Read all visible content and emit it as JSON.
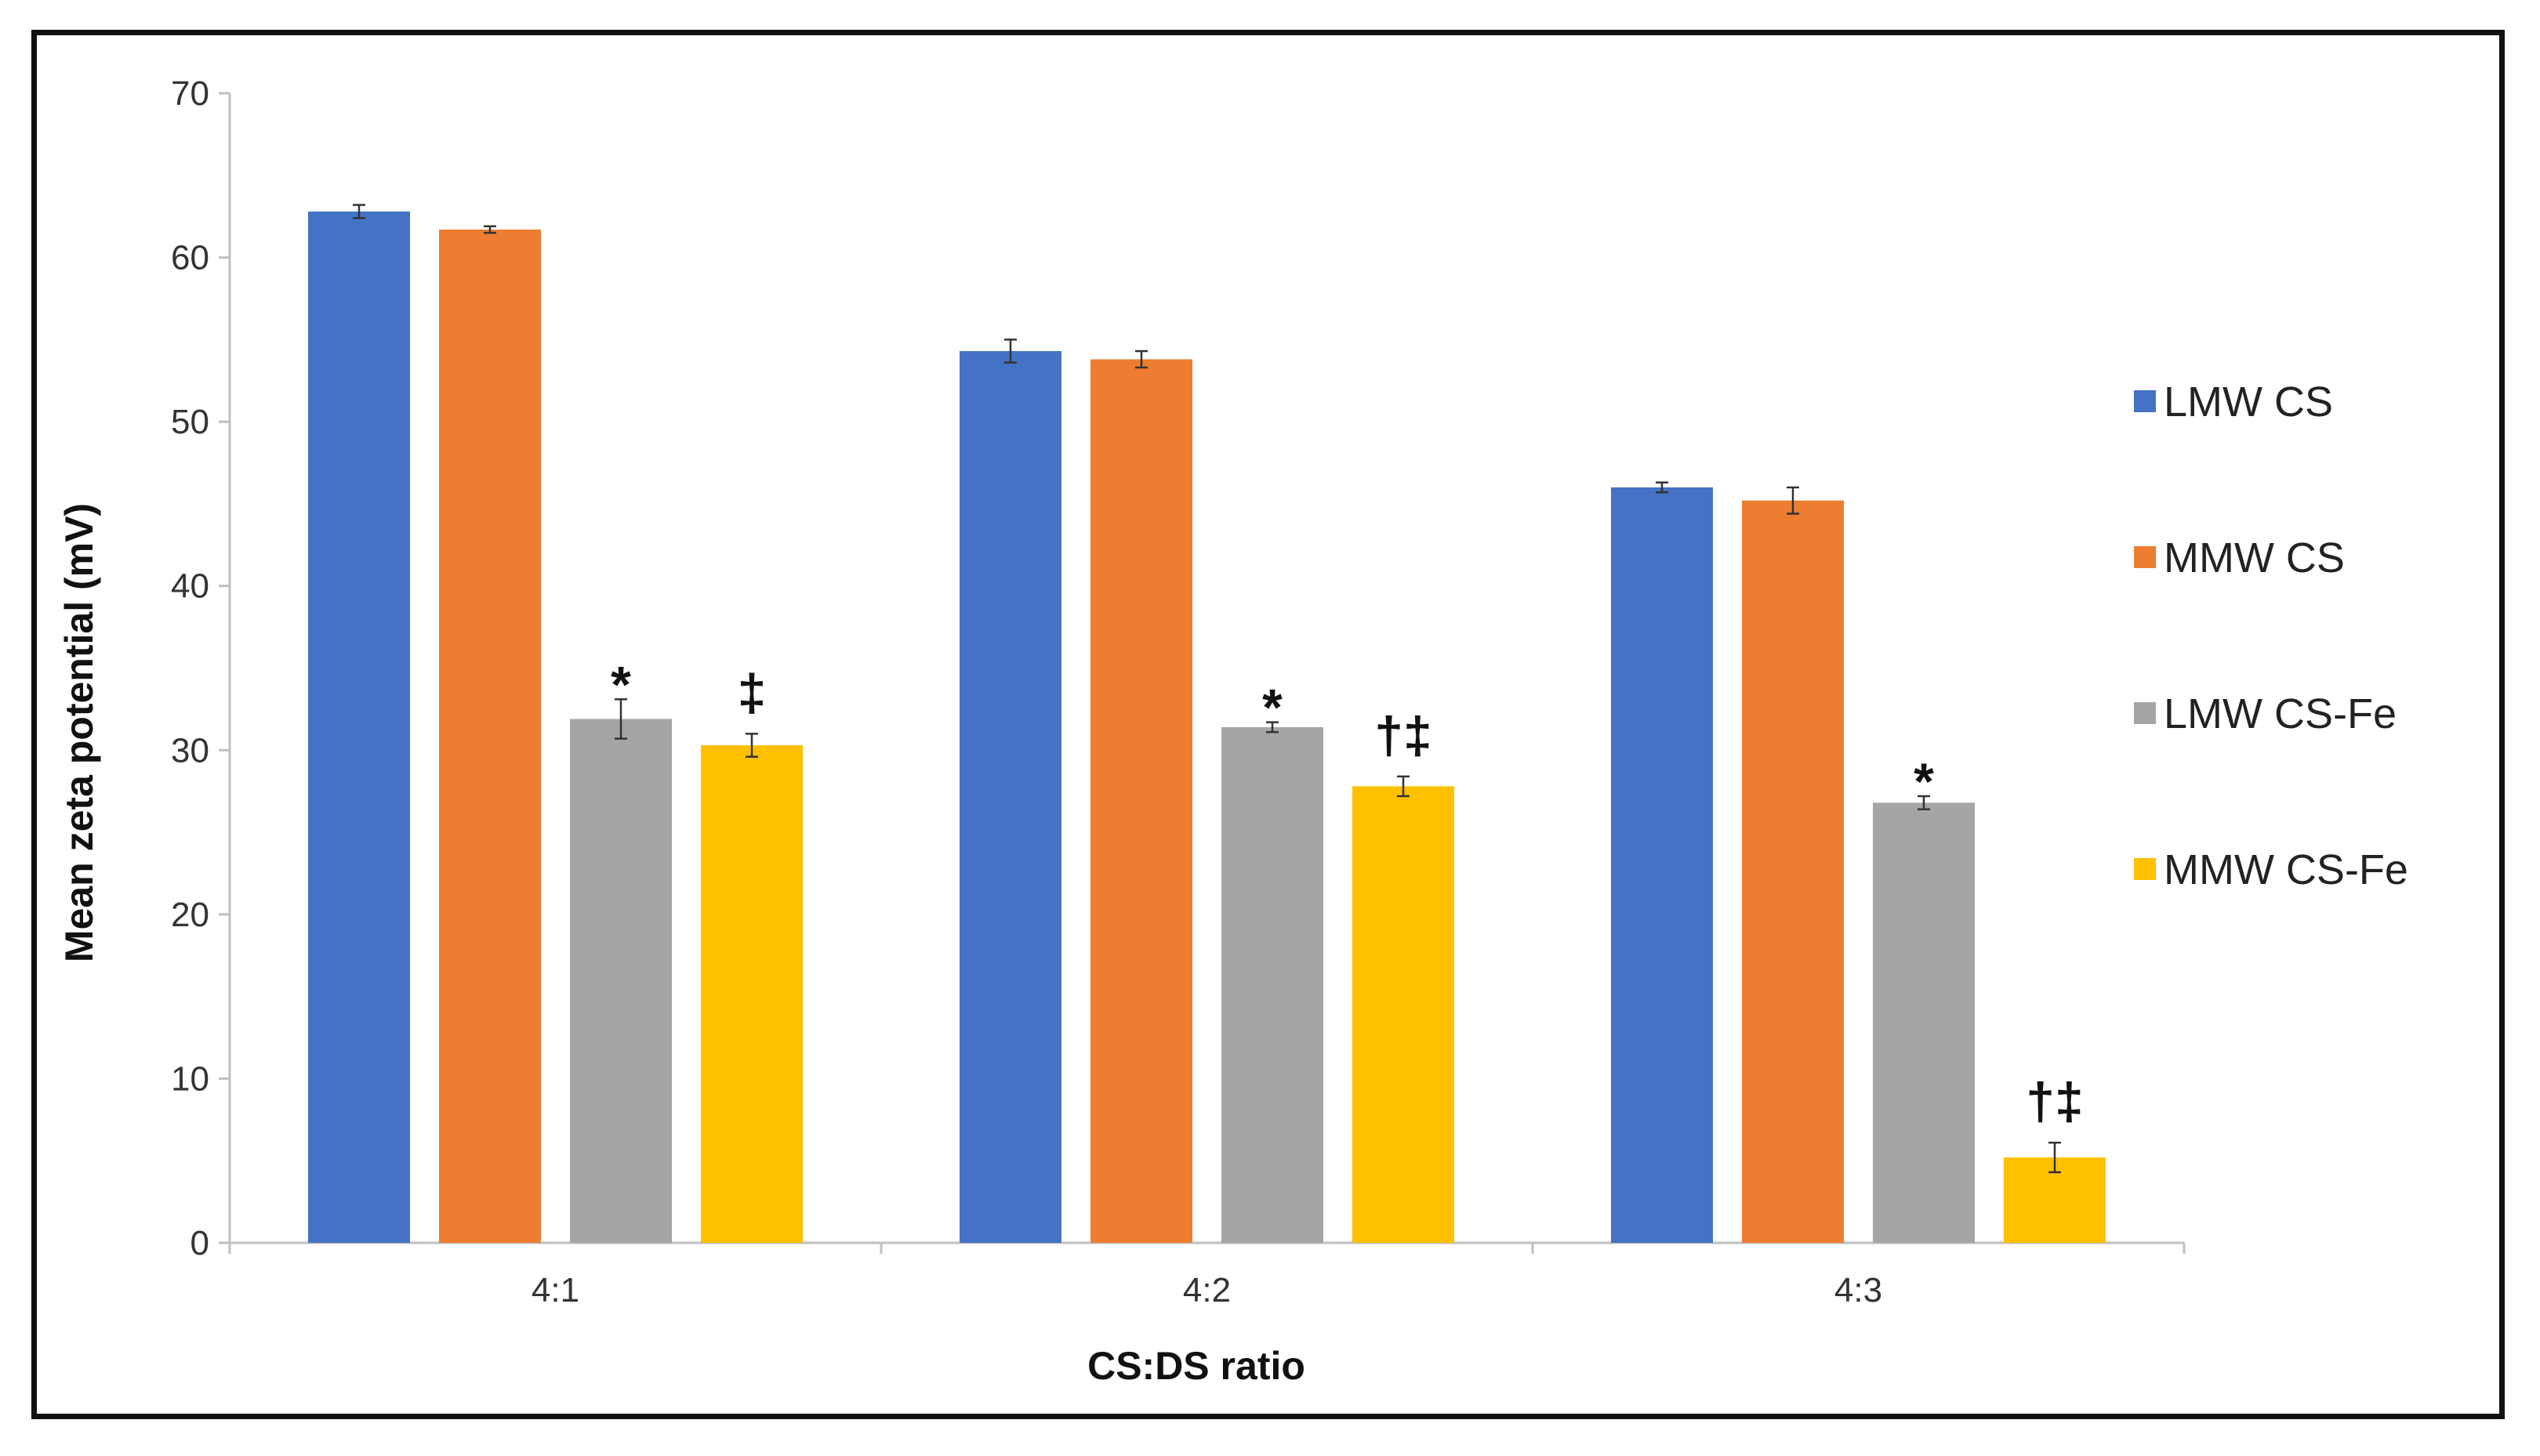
{
  "chart_data": {
    "type": "bar",
    "title": "",
    "xlabel": "CS:DS ratio",
    "ylabel": "Mean  zeta potential (mV)",
    "ylim": [
      0,
      70
    ],
    "yticks": [
      0,
      10,
      20,
      30,
      40,
      50,
      60,
      70
    ],
    "categories": [
      "4:1",
      "4:2",
      "4:3"
    ],
    "legend_position": "right",
    "grid": false,
    "series": [
      {
        "name": "LMW CS",
        "color": "#4472C4",
        "values": [
          62.8,
          54.3,
          46.0
        ],
        "errors": [
          0.4,
          0.7,
          0.3
        ],
        "annotations": [
          "",
          "",
          ""
        ]
      },
      {
        "name": "MMW CS",
        "color": "#ED7D31",
        "values": [
          61.7,
          53.8,
          45.2
        ],
        "errors": [
          0.2,
          0.5,
          0.8
        ],
        "annotations": [
          "",
          "",
          ""
        ]
      },
      {
        "name": "LMW CS-Fe",
        "color": "#A5A5A5",
        "values": [
          31.9,
          31.4,
          26.8
        ],
        "errors": [
          1.2,
          0.3,
          0.4
        ],
        "annotations": [
          "*",
          "*",
          "*"
        ]
      },
      {
        "name": "MMW CS-Fe",
        "color": "#FFC000",
        "values": [
          30.3,
          27.8,
          5.2
        ],
        "errors": [
          0.7,
          0.6,
          0.9
        ],
        "annotations": [
          "‡",
          "†‡",
          "†‡"
        ]
      }
    ]
  }
}
